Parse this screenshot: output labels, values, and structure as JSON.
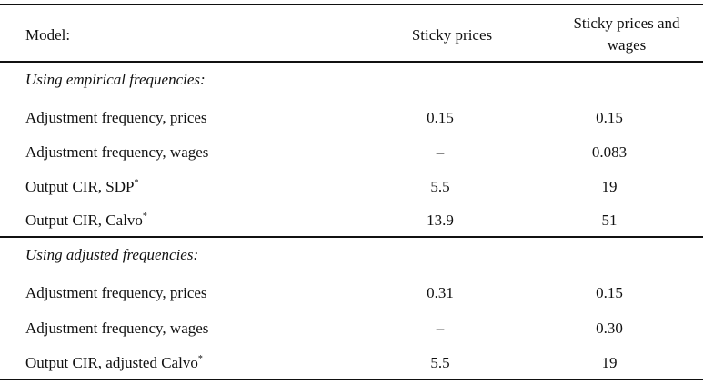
{
  "header": {
    "columns": [
      "Model:",
      "Sticky prices",
      "Sticky prices and wages"
    ]
  },
  "sections": [
    {
      "title": "Using empirical frequencies:",
      "rows": [
        {
          "label": "Adjustment frequency, prices",
          "values": [
            "0.15",
            "0.15"
          ]
        },
        {
          "label": "Adjustment frequency, wages",
          "values": [
            "–",
            "0.083"
          ]
        },
        {
          "label": "Output CIR, SDP",
          "note": "*",
          "values": [
            "5.5",
            "19"
          ]
        },
        {
          "label": "Output CIR, Calvo",
          "note": "*",
          "values": [
            "13.9",
            "51"
          ]
        }
      ]
    },
    {
      "title": "Using adjusted frequencies:",
      "rows": [
        {
          "label": "Adjustment frequency, prices",
          "values": [
            "0.31",
            "0.15"
          ]
        },
        {
          "label": "Adjustment frequency, wages",
          "values": [
            "–",
            "0.30"
          ]
        },
        {
          "label": "Output CIR, adjusted Calvo",
          "note": "*",
          "values": [
            "5.5",
            "19"
          ]
        }
      ]
    }
  ]
}
